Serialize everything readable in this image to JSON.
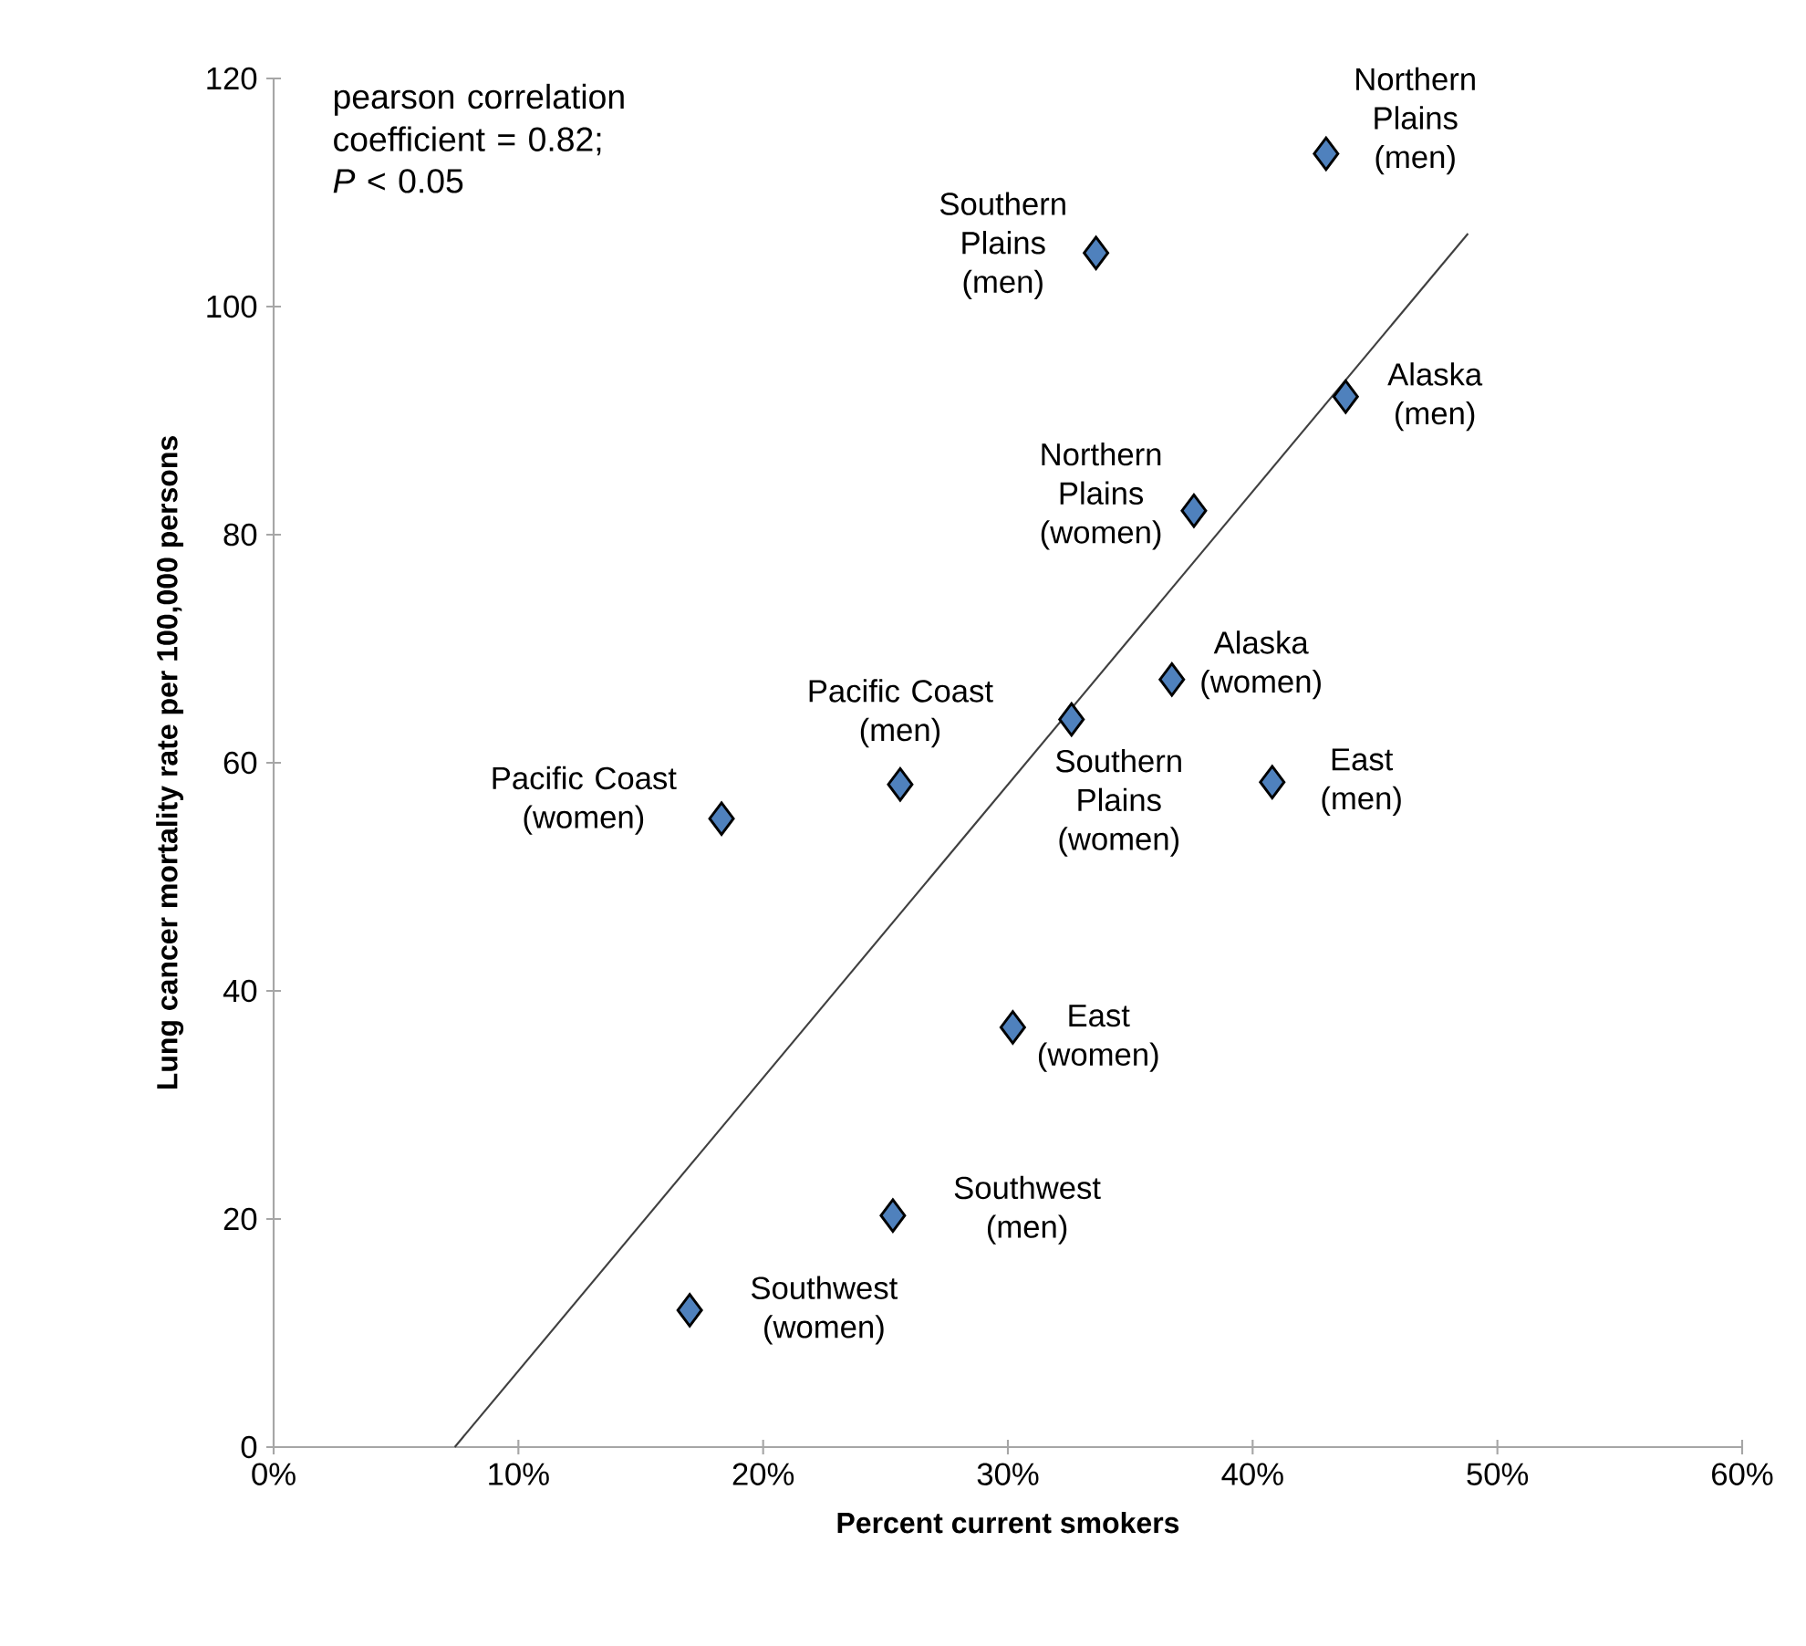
{
  "chart_data": {
    "type": "scatter",
    "xlabel": "Percent current smokers",
    "ylabel": "Lung cancer mortality rate per 100,000 persons",
    "xlim": [
      0,
      60
    ],
    "ylim": [
      0,
      120
    ],
    "xticks": [
      {
        "value": 0,
        "label": "0%"
      },
      {
        "value": 10,
        "label": "10%"
      },
      {
        "value": 20,
        "label": "20%"
      },
      {
        "value": 30,
        "label": "30%"
      },
      {
        "value": 40,
        "label": "40%"
      },
      {
        "value": 50,
        "label": "50%"
      },
      {
        "value": 60,
        "label": "60%"
      }
    ],
    "yticks": [
      0,
      20,
      40,
      60,
      80,
      100,
      120
    ],
    "series": [
      {
        "type": "line",
        "color": "#404040",
        "marker": "none",
        "line_style": "solid",
        "x": [
          7.4,
          48.8
        ],
        "values": [
          0,
          106.4
        ]
      },
      {
        "type": "scatter",
        "color": "#4f81bd",
        "marker": "diamond",
        "x": [
          17.0,
          25.3,
          18.3,
          25.6,
          30.2,
          32.6,
          40.8,
          36.7,
          37.6,
          43.8,
          43.0,
          33.6
        ],
        "values": [
          12.0,
          20.3,
          55.1,
          58.1,
          36.8,
          63.8,
          58.3,
          67.3,
          82.1,
          92.1,
          113.4,
          104.7
        ]
      }
    ],
    "annotations": [
      {
        "text": "Southwest (women)",
        "x": 17.0,
        "y": 12.0
      },
      {
        "text": "Southwest (men)",
        "x": 25.3,
        "y": 20.3
      },
      {
        "text": "Pacific Coast (women)",
        "x": 18.3,
        "y": 55.1
      },
      {
        "text": "Pacific Coast (men)",
        "x": 25.6,
        "y": 58.1
      },
      {
        "text": "East (women)",
        "x": 30.2,
        "y": 36.8
      },
      {
        "text": "Southern Plains (women)",
        "x": 32.6,
        "y": 63.8
      },
      {
        "text": "East (men)",
        "x": 40.8,
        "y": 58.3
      },
      {
        "text": "Alaska (women)",
        "x": 36.7,
        "y": 67.3
      },
      {
        "text": "Northern Plains (women)",
        "x": 37.6,
        "y": 82.1
      },
      {
        "text": "Alaska (men)",
        "x": 43.8,
        "y": 92.1
      },
      {
        "text": "Northern Plains (men)",
        "x": 43.0,
        "y": 113.4
      },
      {
        "text": "Southern Plains (men)",
        "x": 33.6,
        "y": 104.7
      },
      "pearson correlation coefficient = 0.82;",
      "*P* < 0.05"
    ]
  }
}
